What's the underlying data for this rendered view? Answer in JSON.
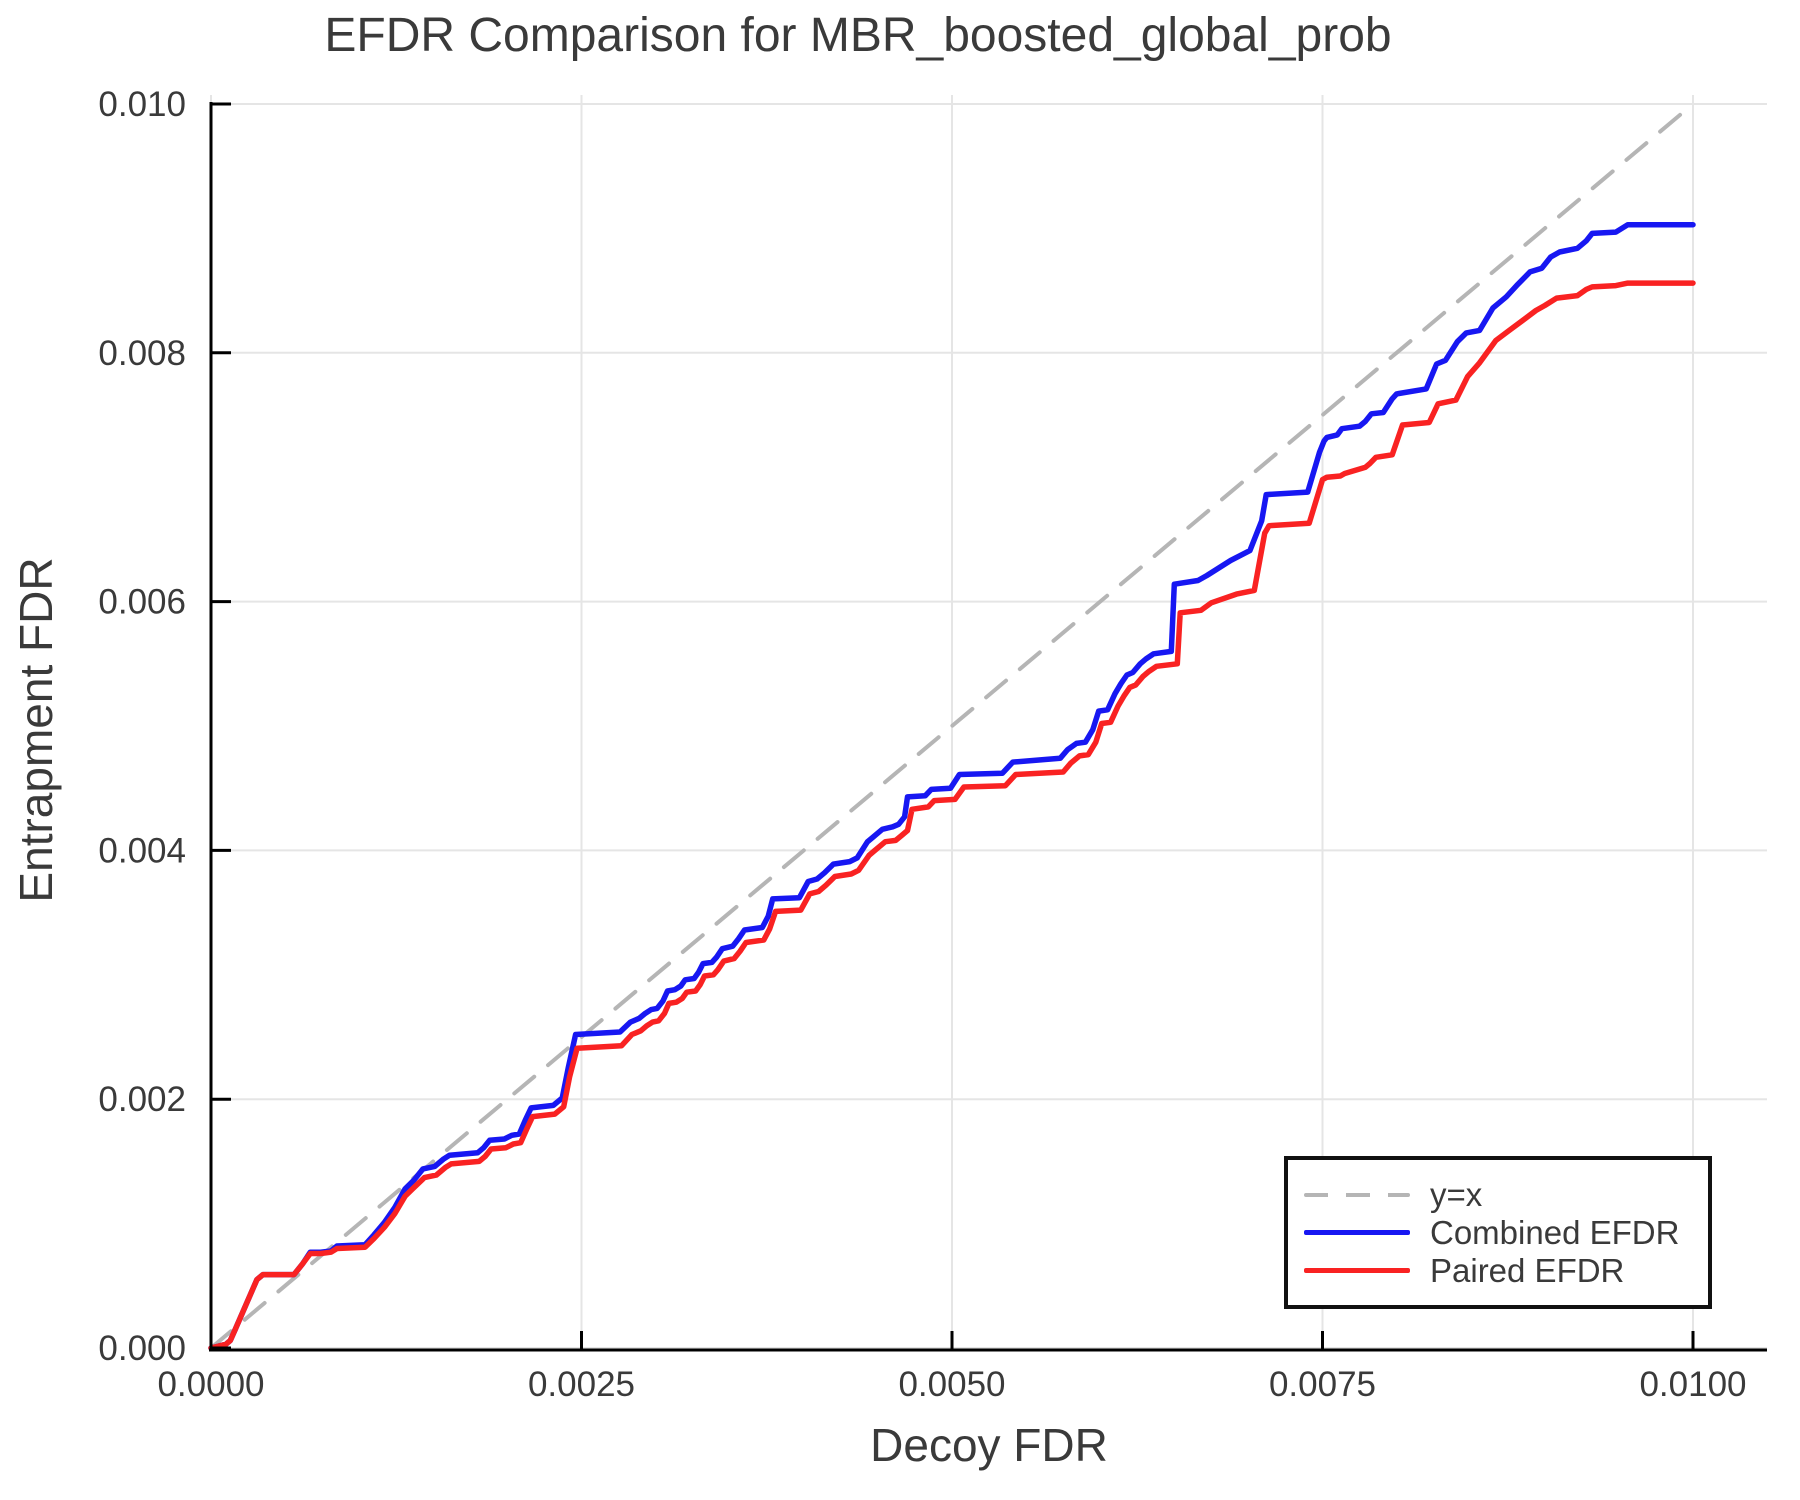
{
  "chart_data": {
    "type": "line",
    "title": "EFDR Comparison for MBR_boosted_global_prob",
    "xlabel": "Decoy FDR",
    "ylabel": "Entrapment FDR",
    "xlim": [
      0.0,
      0.01
    ],
    "ylim": [
      0.0,
      0.01
    ],
    "grid": true,
    "legend_position": "bottom-right",
    "colors": {
      "combined": "#1717f2",
      "paired": "#f92222",
      "identity": "#b5b5b5",
      "gridline": "#e5e5e5",
      "axis": "#000000",
      "text": "#3a3a3a"
    },
    "x_ticks": {
      "values": [
        0.0,
        0.0025,
        0.005,
        0.0075,
        0.01
      ],
      "labels": [
        "0.0000",
        "0.0025",
        "0.0050",
        "0.0075",
        "0.0100"
      ]
    },
    "y_ticks": {
      "values": [
        0.0,
        0.002,
        0.004,
        0.006,
        0.008,
        0.01
      ],
      "labels": [
        "0.000",
        "0.002",
        "0.004",
        "0.006",
        "0.008",
        "0.010"
      ]
    },
    "series": [
      {
        "name": "y=x",
        "style": "dashed",
        "color": "#b5b5b5",
        "points": [
          [
            0.0,
            0.0
          ],
          [
            0.01,
            0.01
          ]
        ]
      },
      {
        "name": "Combined EFDR",
        "style": "solid",
        "color": "#1717f2",
        "points": [
          [
            0.0,
            0.0
          ],
          [
            0.0001,
            3e-05
          ],
          [
            0.00013,
            6e-05
          ],
          [
            0.00016,
            0.00014
          ],
          [
            0.00031,
            0.00055
          ],
          [
            0.00035,
            0.00059
          ],
          [
            0.00056,
            0.00059
          ],
          [
            0.00062,
            0.00068
          ],
          [
            0.00067,
            0.00077
          ],
          [
            0.00074,
            0.00077
          ],
          [
            0.00081,
            0.00078
          ],
          [
            0.00085,
            0.00082
          ],
          [
            0.00104,
            0.00083
          ],
          [
            0.0011,
            0.00091
          ],
          [
            0.00117,
            0.00101
          ],
          [
            0.00124,
            0.00113
          ],
          [
            0.00131,
            0.00128
          ],
          [
            0.00137,
            0.00135
          ],
          [
            0.00143,
            0.00144
          ],
          [
            0.00151,
            0.00146
          ],
          [
            0.00157,
            0.00152
          ],
          [
            0.00161,
            0.00155
          ],
          [
            0.0018,
            0.00157
          ],
          [
            0.00184,
            0.00161
          ],
          [
            0.00188,
            0.00167
          ],
          [
            0.00198,
            0.00168
          ],
          [
            0.00203,
            0.00171
          ],
          [
            0.00208,
            0.00172
          ],
          [
            0.00212,
            0.00183
          ],
          [
            0.00216,
            0.00193
          ],
          [
            0.00231,
            0.00195
          ],
          [
            0.00237,
            0.00201
          ],
          [
            0.00241,
            0.00225
          ],
          [
            0.00246,
            0.00252
          ],
          [
            0.00276,
            0.00254
          ],
          [
            0.00283,
            0.00262
          ],
          [
            0.00289,
            0.00265
          ],
          [
            0.00293,
            0.00269
          ],
          [
            0.00297,
            0.00272
          ],
          [
            0.00301,
            0.00273
          ],
          [
            0.00305,
            0.00279
          ],
          [
            0.00308,
            0.00287
          ],
          [
            0.00313,
            0.00288
          ],
          [
            0.00317,
            0.00291
          ],
          [
            0.0032,
            0.00296
          ],
          [
            0.00326,
            0.00297
          ],
          [
            0.00329,
            0.00302
          ],
          [
            0.00332,
            0.00309
          ],
          [
            0.00338,
            0.0031
          ],
          [
            0.00341,
            0.00314
          ],
          [
            0.00345,
            0.00321
          ],
          [
            0.00352,
            0.00323
          ],
          [
            0.00356,
            0.00329
          ],
          [
            0.0036,
            0.00336
          ],
          [
            0.00372,
            0.00338
          ],
          [
            0.00376,
            0.00347
          ],
          [
            0.00379,
            0.00361
          ],
          [
            0.00397,
            0.00362
          ],
          [
            0.00403,
            0.00375
          ],
          [
            0.00409,
            0.00377
          ],
          [
            0.00414,
            0.00382
          ],
          [
            0.0042,
            0.00389
          ],
          [
            0.00431,
            0.00391
          ],
          [
            0.00436,
            0.00394
          ],
          [
            0.00443,
            0.00407
          ],
          [
            0.00447,
            0.00411
          ],
          [
            0.00453,
            0.00417
          ],
          [
            0.0046,
            0.00419
          ],
          [
            0.00464,
            0.00421
          ],
          [
            0.00468,
            0.00427
          ],
          [
            0.0047,
            0.00443
          ],
          [
            0.00482,
            0.00444
          ],
          [
            0.00486,
            0.00449
          ],
          [
            0.00499,
            0.0045
          ],
          [
            0.00505,
            0.00461
          ],
          [
            0.00534,
            0.00462
          ],
          [
            0.00541,
            0.00471
          ],
          [
            0.00573,
            0.00474
          ],
          [
            0.00578,
            0.00481
          ],
          [
            0.00584,
            0.00486
          ],
          [
            0.0059,
            0.00487
          ],
          [
            0.00595,
            0.00497
          ],
          [
            0.00599,
            0.00512
          ],
          [
            0.00605,
            0.00513
          ],
          [
            0.0061,
            0.00526
          ],
          [
            0.00614,
            0.00534
          ],
          [
            0.00618,
            0.00541
          ],
          [
            0.00622,
            0.00543
          ],
          [
            0.00627,
            0.0055
          ],
          [
            0.00631,
            0.00554
          ],
          [
            0.00636,
            0.00558
          ],
          [
            0.00648,
            0.0056
          ],
          [
            0.0065,
            0.00614
          ],
          [
            0.00666,
            0.00617
          ],
          [
            0.00672,
            0.00621
          ],
          [
            0.00688,
            0.00633
          ],
          [
            0.00701,
            0.00641
          ],
          [
            0.00709,
            0.00665
          ],
          [
            0.00712,
            0.00686
          ],
          [
            0.0074,
            0.00688
          ],
          [
            0.00748,
            0.0072
          ],
          [
            0.00751,
            0.00729
          ],
          [
            0.00753,
            0.00732
          ],
          [
            0.0076,
            0.00734
          ],
          [
            0.00763,
            0.00739
          ],
          [
            0.00775,
            0.00741
          ],
          [
            0.00779,
            0.00745
          ],
          [
            0.00783,
            0.00751
          ],
          [
            0.00791,
            0.00752
          ],
          [
            0.00797,
            0.00763
          ],
          [
            0.008,
            0.00767
          ],
          [
            0.0082,
            0.00771
          ],
          [
            0.00827,
            0.00791
          ],
          [
            0.00833,
            0.00794
          ],
          [
            0.00841,
            0.00809
          ],
          [
            0.00847,
            0.00816
          ],
          [
            0.00856,
            0.00818
          ],
          [
            0.00865,
            0.00836
          ],
          [
            0.00874,
            0.00845
          ],
          [
            0.00881,
            0.00854
          ],
          [
            0.0089,
            0.00865
          ],
          [
            0.00898,
            0.00868
          ],
          [
            0.00904,
            0.00877
          ],
          [
            0.0091,
            0.00881
          ],
          [
            0.00922,
            0.00884
          ],
          [
            0.00928,
            0.0089
          ],
          [
            0.00932,
            0.00896
          ],
          [
            0.00948,
            0.00897
          ],
          [
            0.00956,
            0.00903
          ],
          [
            0.01,
            0.00903
          ]
        ]
      },
      {
        "name": "Paired EFDR",
        "style": "solid",
        "color": "#f92222",
        "points": [
          [
            0.0,
            0.0
          ],
          [
            0.0001,
            3e-05
          ],
          [
            0.00013,
            6e-05
          ],
          [
            0.00016,
            0.00014
          ],
          [
            0.00031,
            0.00055
          ],
          [
            0.00035,
            0.00059
          ],
          [
            0.00056,
            0.00059
          ],
          [
            0.00062,
            0.00068
          ],
          [
            0.00067,
            0.00076
          ],
          [
            0.00074,
            0.00076
          ],
          [
            0.00081,
            0.00077
          ],
          [
            0.00085,
            0.0008
          ],
          [
            0.00104,
            0.00081
          ],
          [
            0.0011,
            0.00088
          ],
          [
            0.00117,
            0.00097
          ],
          [
            0.00124,
            0.00108
          ],
          [
            0.00131,
            0.00122
          ],
          [
            0.00137,
            0.00129
          ],
          [
            0.00144,
            0.00137
          ],
          [
            0.00152,
            0.00139
          ],
          [
            0.00158,
            0.00145
          ],
          [
            0.00162,
            0.00148
          ],
          [
            0.00181,
            0.0015
          ],
          [
            0.00185,
            0.00154
          ],
          [
            0.00189,
            0.0016
          ],
          [
            0.00199,
            0.00161
          ],
          [
            0.00204,
            0.00164
          ],
          [
            0.00209,
            0.00165
          ],
          [
            0.00213,
            0.00176
          ],
          [
            0.00217,
            0.00186
          ],
          [
            0.00232,
            0.00188
          ],
          [
            0.00238,
            0.00194
          ],
          [
            0.00242,
            0.00218
          ],
          [
            0.00247,
            0.00241
          ],
          [
            0.00277,
            0.00243
          ],
          [
            0.00284,
            0.00252
          ],
          [
            0.0029,
            0.00255
          ],
          [
            0.00294,
            0.00259
          ],
          [
            0.00298,
            0.00262
          ],
          [
            0.00302,
            0.00263
          ],
          [
            0.00306,
            0.00269
          ],
          [
            0.00309,
            0.00277
          ],
          [
            0.00314,
            0.00278
          ],
          [
            0.00318,
            0.00281
          ],
          [
            0.00321,
            0.00286
          ],
          [
            0.00327,
            0.00287
          ],
          [
            0.0033,
            0.00292
          ],
          [
            0.00333,
            0.00299
          ],
          [
            0.00339,
            0.003
          ],
          [
            0.00342,
            0.00304
          ],
          [
            0.00346,
            0.00311
          ],
          [
            0.00353,
            0.00313
          ],
          [
            0.00357,
            0.00319
          ],
          [
            0.00361,
            0.00326
          ],
          [
            0.00373,
            0.00328
          ],
          [
            0.00377,
            0.00337
          ],
          [
            0.00381,
            0.00351
          ],
          [
            0.00398,
            0.00352
          ],
          [
            0.00404,
            0.00365
          ],
          [
            0.0041,
            0.00367
          ],
          [
            0.00415,
            0.00372
          ],
          [
            0.00421,
            0.00379
          ],
          [
            0.00432,
            0.00381
          ],
          [
            0.00437,
            0.00384
          ],
          [
            0.00444,
            0.00396
          ],
          [
            0.00448,
            0.004
          ],
          [
            0.00455,
            0.00407
          ],
          [
            0.00462,
            0.00408
          ],
          [
            0.00466,
            0.00412
          ],
          [
            0.0047,
            0.00416
          ],
          [
            0.00473,
            0.00433
          ],
          [
            0.00484,
            0.00435
          ],
          [
            0.00488,
            0.0044
          ],
          [
            0.00502,
            0.00441
          ],
          [
            0.00508,
            0.00451
          ],
          [
            0.00536,
            0.00452
          ],
          [
            0.00543,
            0.00461
          ],
          [
            0.00575,
            0.00463
          ],
          [
            0.0058,
            0.0047
          ],
          [
            0.00586,
            0.00476
          ],
          [
            0.00592,
            0.00477
          ],
          [
            0.00597,
            0.00487
          ],
          [
            0.00601,
            0.00502
          ],
          [
            0.00607,
            0.00503
          ],
          [
            0.00612,
            0.00516
          ],
          [
            0.00616,
            0.00524
          ],
          [
            0.0062,
            0.00531
          ],
          [
            0.00624,
            0.00533
          ],
          [
            0.00629,
            0.0054
          ],
          [
            0.00633,
            0.00544
          ],
          [
            0.00638,
            0.00548
          ],
          [
            0.00652,
            0.0055
          ],
          [
            0.00654,
            0.00591
          ],
          [
            0.00668,
            0.00593
          ],
          [
            0.00675,
            0.00599
          ],
          [
            0.00692,
            0.00606
          ],
          [
            0.00704,
            0.00609
          ],
          [
            0.00711,
            0.00655
          ],
          [
            0.00714,
            0.00661
          ],
          [
            0.00741,
            0.00663
          ],
          [
            0.0075,
            0.00698
          ],
          [
            0.00753,
            0.007
          ],
          [
            0.00762,
            0.00701
          ],
          [
            0.00765,
            0.00703
          ],
          [
            0.00779,
            0.00708
          ],
          [
            0.00782,
            0.00711
          ],
          [
            0.00786,
            0.00716
          ],
          [
            0.00797,
            0.00718
          ],
          [
            0.00804,
            0.00742
          ],
          [
            0.00822,
            0.00744
          ],
          [
            0.00828,
            0.00759
          ],
          [
            0.0084,
            0.00762
          ],
          [
            0.00848,
            0.00781
          ],
          [
            0.00856,
            0.00792
          ],
          [
            0.00867,
            0.0081
          ],
          [
            0.00876,
            0.00818
          ],
          [
            0.00885,
            0.00826
          ],
          [
            0.00894,
            0.00834
          ],
          [
            0.009,
            0.00838
          ],
          [
            0.00908,
            0.00844
          ],
          [
            0.00922,
            0.00846
          ],
          [
            0.00928,
            0.00851
          ],
          [
            0.00932,
            0.00853
          ],
          [
            0.00948,
            0.00854
          ],
          [
            0.00956,
            0.00856
          ],
          [
            0.01,
            0.00856
          ]
        ]
      }
    ]
  }
}
